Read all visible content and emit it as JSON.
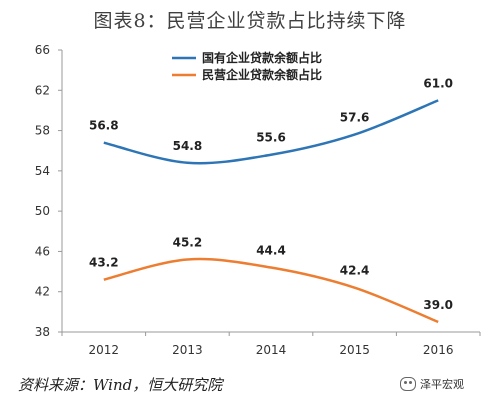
{
  "title": "图表8：民营企业贷款占比持续下降",
  "source": "资料来源：Wind，恒大研究院",
  "watermark": "泽平宏观",
  "chart_data": {
    "type": "line",
    "title": "图表8：民营企业贷款占比持续下降",
    "xlabel": "",
    "ylabel": "",
    "x": [
      "2012",
      "2013",
      "2014",
      "2015",
      "2016"
    ],
    "ylim": [
      38,
      66
    ],
    "yticks": [
      38,
      42,
      46,
      50,
      54,
      58,
      62,
      66
    ],
    "grid": false,
    "legend": "top-center",
    "series": [
      {
        "name": "国有企业贷款余额占比",
        "values": [
          56.8,
          54.8,
          55.6,
          57.6,
          61.0
        ],
        "labels": [
          "56.8",
          "54.8",
          "55.6",
          "57.6",
          "61.0"
        ],
        "color": "#2e75b6"
      },
      {
        "name": "民营企业贷款余额占比",
        "values": [
          43.2,
          45.2,
          44.4,
          42.4,
          39.0
        ],
        "labels": [
          "43.2",
          "45.2",
          "44.4",
          "42.4",
          "39.0"
        ],
        "color": "#ed7d31"
      }
    ]
  }
}
